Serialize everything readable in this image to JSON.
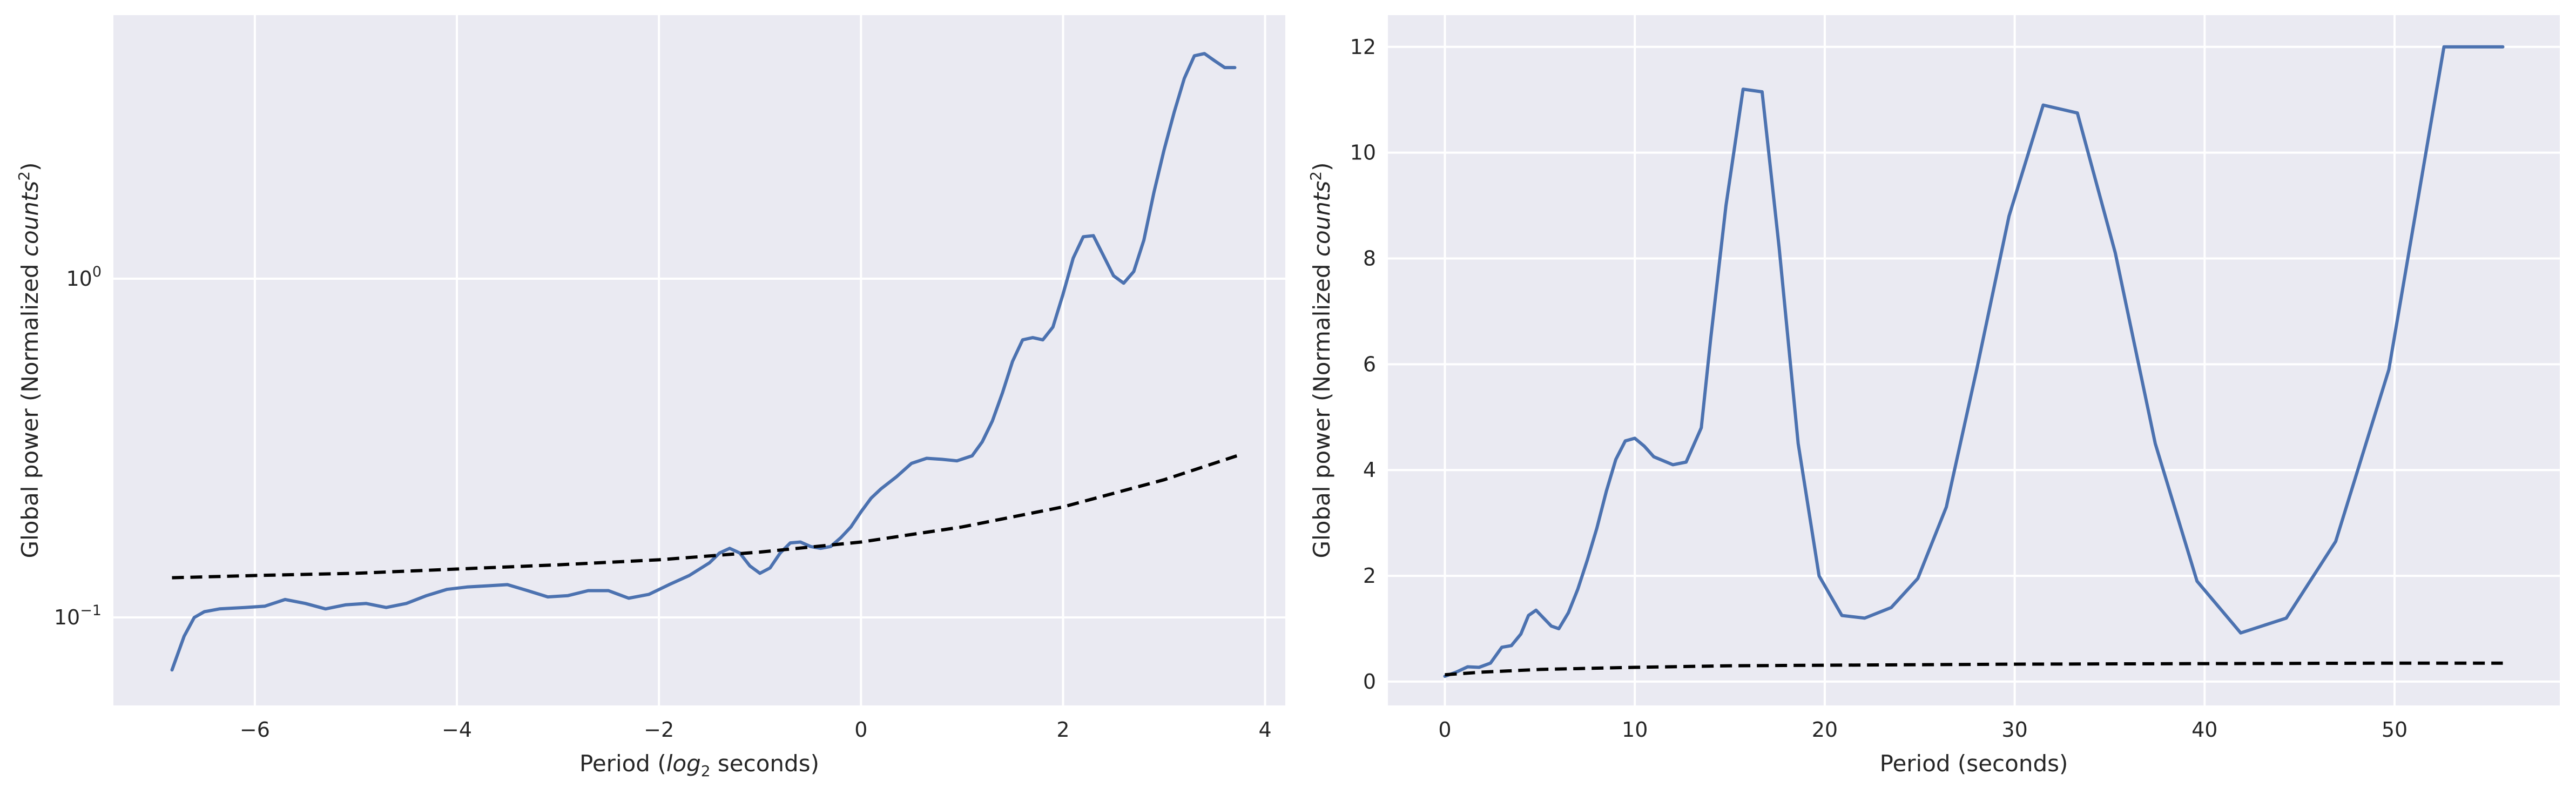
{
  "chart_data": [
    {
      "type": "line",
      "xlabel": "Period (log2 seconds)",
      "xlabel_parts": {
        "pre": "Period (",
        "italic": "log",
        "sub": "2",
        "post": " seconds)"
      },
      "ylabel": "Global power (Normalized counts²)",
      "ylabel_parts": {
        "pre": "Global power (Normalized ",
        "italic": "counts",
        "sup": "2",
        "post": ")"
      },
      "yscale": "log",
      "xlim": [
        -7.4,
        4.2
      ],
      "ylim": [
        0.055,
        6.0
      ],
      "xticks": [
        -6,
        -4,
        -2,
        0,
        2,
        4
      ],
      "xtick_labels": [
        "−6",
        "−4",
        "−2",
        "0",
        "2",
        "4"
      ],
      "yticks": [
        {
          "base": "10",
          "exp": "−1",
          "value": 0.1
        },
        {
          "base": "10",
          "exp": "0",
          "value": 1
        }
      ],
      "grid": true,
      "series": [
        {
          "style": "solid",
          "color": "#4c72b0",
          "x": [
            -6.82,
            -6.7,
            -6.6,
            -6.5,
            -6.35,
            -6.1,
            -5.9,
            -5.7,
            -5.5,
            -5.3,
            -5.1,
            -4.9,
            -4.7,
            -4.5,
            -4.3,
            -4.1,
            -3.9,
            -3.7,
            -3.5,
            -3.3,
            -3.1,
            -2.9,
            -2.7,
            -2.5,
            -2.3,
            -2.1,
            -1.9,
            -1.7,
            -1.5,
            -1.4,
            -1.3,
            -1.2,
            -1.1,
            -1.0,
            -0.9,
            -0.8,
            -0.7,
            -0.6,
            -0.5,
            -0.4,
            -0.3,
            -0.2,
            -0.1,
            0.0,
            0.1,
            0.2,
            0.35,
            0.5,
            0.65,
            0.8,
            0.95,
            1.1,
            1.2,
            1.3,
            1.4,
            1.5,
            1.6,
            1.7,
            1.8,
            1.9,
            2.0,
            2.1,
            2.2,
            2.3,
            2.4,
            2.5,
            2.6,
            2.7,
            2.8,
            2.9,
            3.0,
            3.1,
            3.2,
            3.3,
            3.4,
            3.5,
            3.6,
            3.7
          ],
          "y": [
            0.07,
            0.088,
            0.1,
            0.104,
            0.106,
            0.107,
            0.108,
            0.113,
            0.11,
            0.106,
            0.109,
            0.11,
            0.107,
            0.11,
            0.116,
            0.121,
            0.123,
            0.124,
            0.125,
            0.12,
            0.115,
            0.116,
            0.12,
            0.12,
            0.114,
            0.117,
            0.125,
            0.133,
            0.145,
            0.155,
            0.16,
            0.155,
            0.142,
            0.135,
            0.14,
            0.155,
            0.166,
            0.167,
            0.162,
            0.16,
            0.162,
            0.172,
            0.185,
            0.205,
            0.225,
            0.24,
            0.26,
            0.285,
            0.295,
            0.293,
            0.29,
            0.3,
            0.33,
            0.38,
            0.46,
            0.57,
            0.66,
            0.67,
            0.66,
            0.72,
            0.9,
            1.15,
            1.33,
            1.34,
            1.17,
            1.02,
            0.97,
            1.05,
            1.3,
            1.8,
            2.4,
            3.1,
            3.9,
            4.55,
            4.62,
            4.4,
            4.2,
            4.2
          ]
        },
        {
          "style": "dashed",
          "color": "#000000",
          "x": [
            -6.82,
            -6.0,
            -5.0,
            -4.0,
            -3.0,
            -2.0,
            -1.0,
            0.0,
            1.0,
            2.0,
            3.0,
            3.72
          ],
          "y": [
            0.131,
            0.133,
            0.135,
            0.139,
            0.143,
            0.148,
            0.156,
            0.167,
            0.185,
            0.212,
            0.255,
            0.3
          ]
        }
      ]
    },
    {
      "type": "line",
      "xlabel": "Period (seconds)",
      "ylabel": "Global power (Normalized counts²)",
      "ylabel_parts": {
        "pre": "Global power (Normalized ",
        "italic": "counts",
        "sup": "2",
        "post": ")"
      },
      "xlim": [
        -3.0,
        58.7
      ],
      "ylim": [
        -0.45,
        12.6
      ],
      "xticks": [
        0,
        10,
        20,
        30,
        40,
        50
      ],
      "xtick_labels": [
        "0",
        "10",
        "20",
        "30",
        "40",
        "50"
      ],
      "yticks": [
        0,
        2,
        4,
        6,
        8,
        10,
        12
      ],
      "ytick_labels": [
        "0",
        "2",
        "4",
        "6",
        "8",
        "10",
        "12"
      ],
      "grid": true,
      "series": [
        {
          "style": "solid",
          "color": "#4c72b0",
          "x": [
            0.0,
            0.6,
            1.2,
            1.8,
            2.4,
            3.0,
            3.5,
            4.0,
            4.4,
            4.8,
            5.2,
            5.6,
            6.0,
            6.5,
            7.0,
            7.5,
            8.0,
            8.5,
            9.0,
            9.5,
            10.0,
            10.5,
            11.0,
            12.0,
            12.7,
            13.5,
            14.0,
            14.8,
            15.7,
            16.7,
            17.6,
            18.6,
            19.7,
            20.9,
            22.1,
            23.5,
            24.9,
            26.4,
            28.0,
            29.7,
            31.5,
            33.3,
            35.3,
            37.4,
            39.6,
            41.9,
            44.3,
            46.9,
            49.7,
            52.6,
            55.7
          ],
          "y": [
            0.1,
            0.18,
            0.28,
            0.27,
            0.35,
            0.65,
            0.68,
            0.9,
            1.25,
            1.35,
            1.2,
            1.05,
            1.0,
            1.3,
            1.75,
            2.3,
            2.9,
            3.6,
            4.2,
            4.55,
            4.6,
            4.45,
            4.25,
            4.1,
            4.15,
            4.8,
            6.5,
            9.0,
            11.2,
            11.15,
            8.2,
            4.5,
            2.0,
            1.25,
            1.2,
            1.4,
            1.95,
            3.3,
            5.9,
            8.8,
            10.9,
            10.75,
            8.1,
            4.5,
            1.9,
            0.92,
            1.2,
            2.65,
            5.9,
            12.0,
            12.0
          ]
        },
        {
          "style": "dashed",
          "color": "#000000",
          "x": [
            0.0,
            2.0,
            5.0,
            10.0,
            15.0,
            20.0,
            25.0,
            30.0,
            40.0,
            50.0,
            55.7
          ],
          "y": [
            0.13,
            0.18,
            0.23,
            0.27,
            0.3,
            0.31,
            0.32,
            0.33,
            0.34,
            0.35,
            0.35
          ]
        }
      ]
    }
  ]
}
